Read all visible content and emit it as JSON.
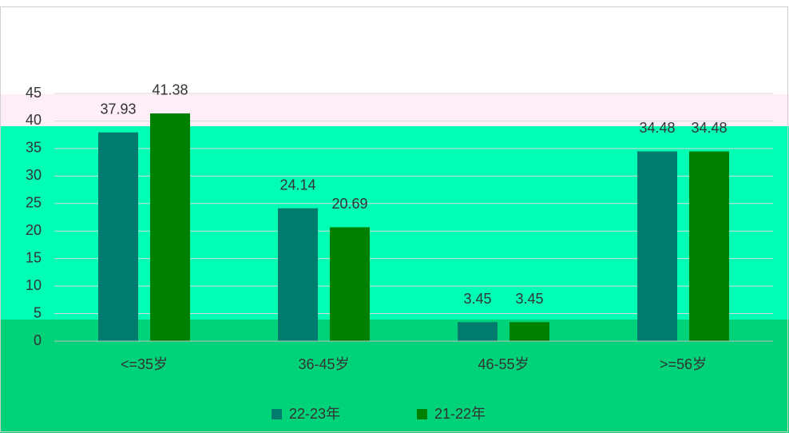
{
  "chart_data": {
    "type": "bar",
    "categories": [
      "<=35岁",
      "36-45岁",
      "46-55岁",
      ">=56岁"
    ],
    "series": [
      {
        "name": "22-23年",
        "color": "#007b6e",
        "values": [
          37.93,
          24.14,
          3.45,
          34.48
        ]
      },
      {
        "name": "21-22年",
        "color": "#008000",
        "values": [
          41.38,
          20.69,
          3.45,
          34.48
        ]
      }
    ],
    "ylim": [
      0,
      45
    ],
    "yticks": [
      0,
      5,
      10,
      15,
      20,
      25,
      30,
      35,
      40,
      45
    ],
    "grid": true,
    "legend": "bottom"
  }
}
